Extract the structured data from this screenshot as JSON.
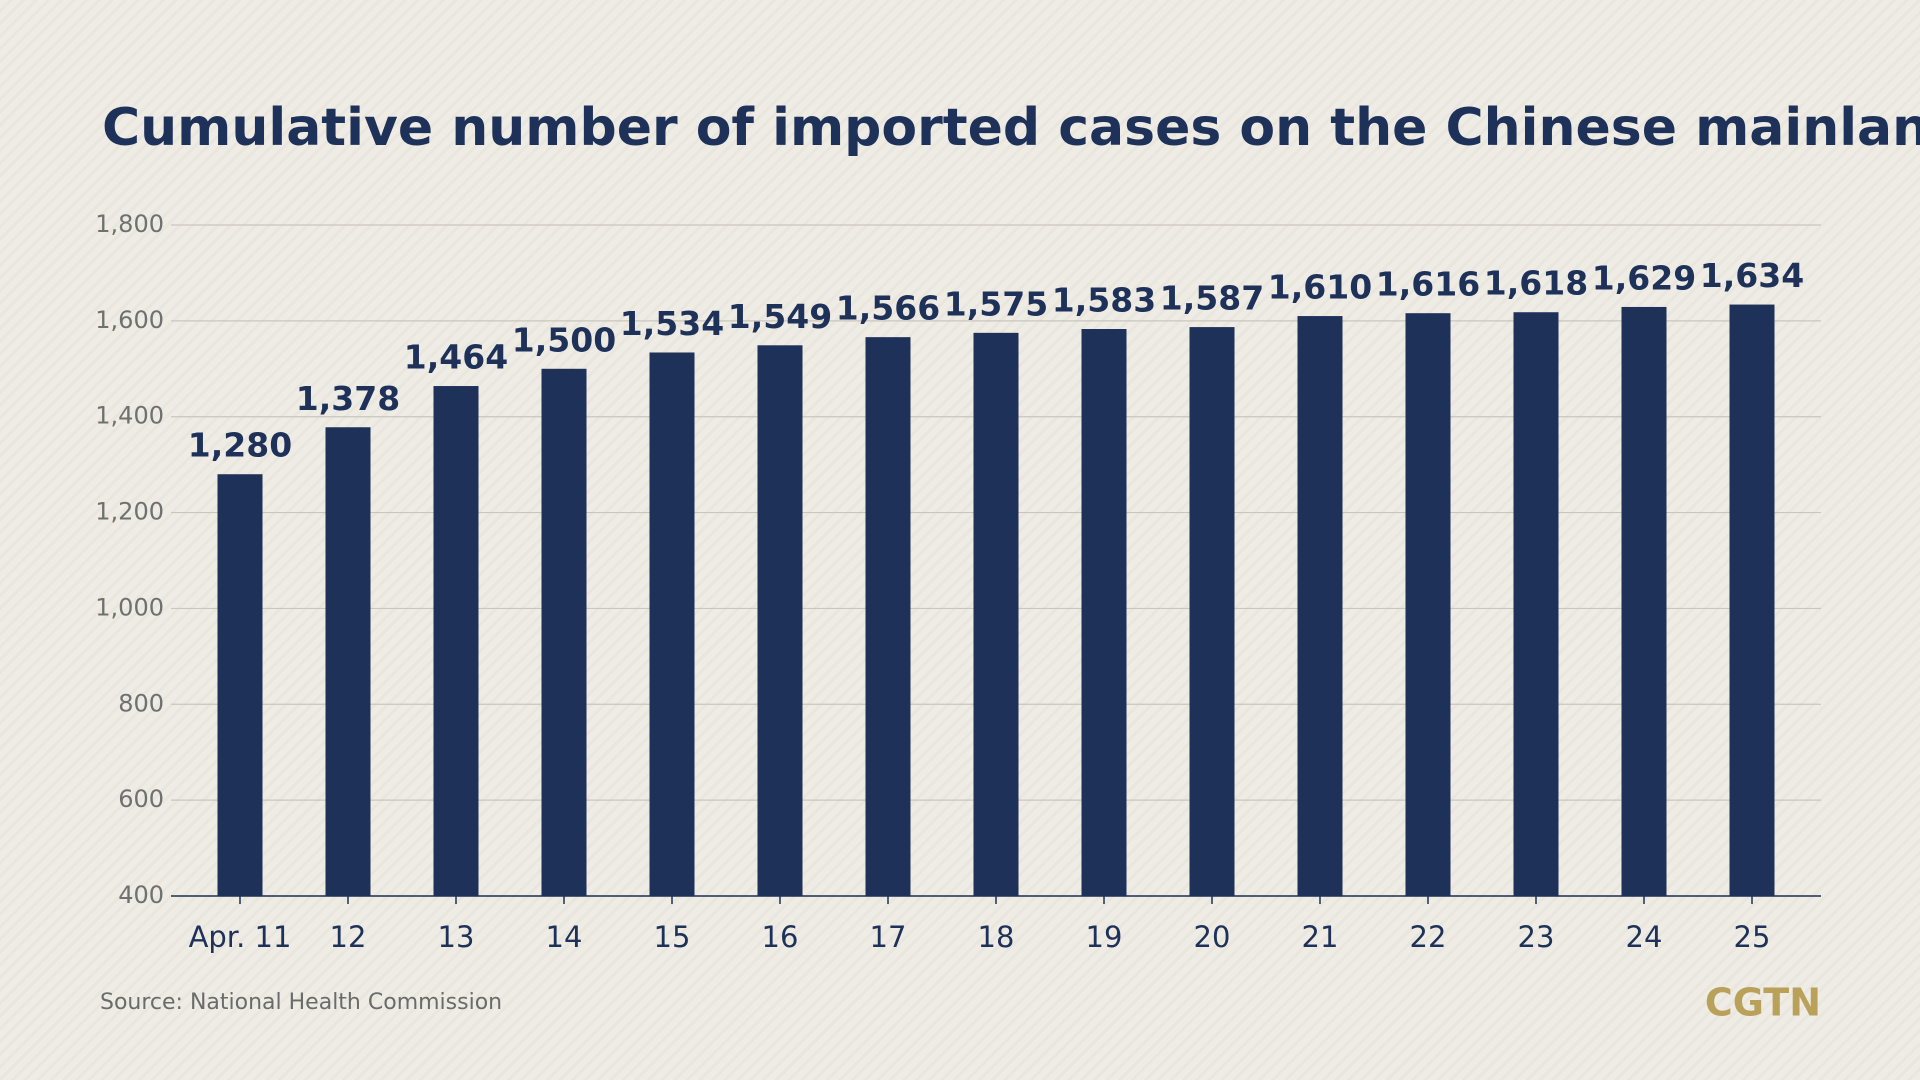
{
  "chart_data": {
    "type": "bar",
    "title": "Cumulative number of imported cases on the Chinese mainland",
    "source": "Source: National Health Commission",
    "logo": "CGTN",
    "categories": [
      "Apr. 11",
      "12",
      "13",
      "14",
      "15",
      "16",
      "17",
      "18",
      "19",
      "20",
      "21",
      "22",
      "23",
      "24",
      "25"
    ],
    "values": [
      1280,
      1378,
      1464,
      1500,
      1534,
      1549,
      1566,
      1575,
      1583,
      1587,
      1610,
      1616,
      1618,
      1629,
      1634
    ],
    "value_labels": [
      "1,280",
      "1,378",
      "1,464",
      "1,500",
      "1,534",
      "1,549",
      "1,566",
      "1,575",
      "1,583",
      "1,587",
      "1,610",
      "1,616",
      "1,618",
      "1,629",
      "1,634"
    ],
    "color": "#1e3159",
    "ylim": [
      400,
      1800
    ],
    "yticks": [
      400,
      600,
      800,
      {
        "value": 1000,
        "label": "1,000"
      },
      {
        "value": 1200,
        "label": "1,200"
      },
      {
        "value": 1400,
        "label": "1,400"
      },
      {
        "value": 1600,
        "label": "1,600"
      },
      {
        "value": 1800,
        "label": "1,800"
      }
    ],
    "grid": true
  }
}
